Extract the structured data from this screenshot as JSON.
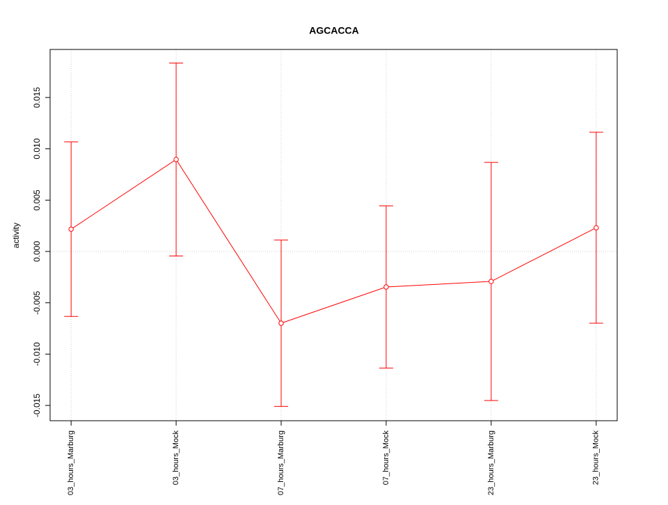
{
  "chart_data": {
    "type": "line",
    "title": "AGCACCA",
    "y_label": "activity",
    "categories": [
      "03_hours_Marburg",
      "03_hours_Mock",
      "07_hours_Marburg",
      "07_hours_Mock",
      "23_hours_Marburg",
      "23_hours_Mock"
    ],
    "series": [
      {
        "color": "#ff0000",
        "values": [
          0.00217,
          0.00896,
          -0.00699,
          -0.00346,
          -0.00292,
          0.00231
        ],
        "errors": [
          0.0085,
          0.0094,
          0.0081,
          0.0079,
          0.0116,
          0.0093
        ]
      }
    ],
    "ylim": [
      -0.01649,
      0.01968
    ],
    "yticks": [
      -0.015,
      {
        "value": -0.01,
        "label": "-0.010"
      },
      -0.005,
      {
        "value": 0,
        "label": "0.000"
      },
      0.005,
      {
        "value": 0.01,
        "label": "0.010"
      },
      0.015
    ],
    "grid": true,
    "reference_line": 0
  }
}
